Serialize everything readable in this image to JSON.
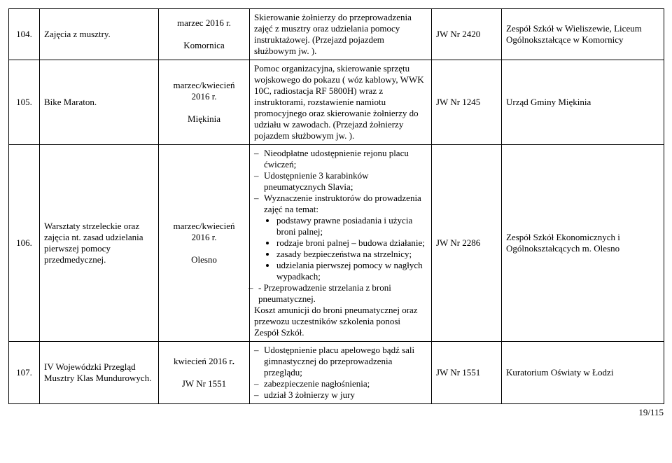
{
  "page_footer": "19/115",
  "rows": [
    {
      "num": "104.",
      "topic": "Zajęcia z musztry.",
      "when_html": "marzec 2016 r.<br><br>Komornica",
      "desc_html": "Skierowanie żołnierzy do przeprowadzenia zajęć z musztry oraz udzielania pomocy instruktażowej. (Przejazd pojazdem służbowym jw. ).",
      "jw": "JW Nr 2420",
      "contact_html": "Zespół Szkół w Wieliszewie, Liceum Ogólnokształcące w Komornicy"
    },
    {
      "num": "105.",
      "topic": "Bike Maraton.",
      "when_html": "marzec/kwiecień 2016 r.<br><br>Miękinia",
      "desc_html": "Pomoc organizacyjna, skierowanie sprzętu wojskowego do pokazu ( wóz kablowy, WWK 10C, radiostacja RF 5800H) wraz z instruktorami, rozstawienie namiotu promocyjnego oraz  skierowanie żołnierzy do udziału w zawodach. (Przejazd żołnierzy pojazdem służbowym jw. ).",
      "jw": "JW Nr 1245",
      "contact_html": "Urząd Gminy Miękinia"
    },
    {
      "num": "106.",
      "topic": "Warsztaty strzeleckie oraz zajęcia nt. zasad udzielania pierwszej pomocy przedmedycznej.",
      "when_html": "marzec/kwiecień 2016 r.<br><br>Olesno",
      "desc_html": "<ul class=\"dash\"><li>Nieodpłatne udostępnienie  rejonu placu ćwiczeń;</li><li>Udostępnienie 3 karabinków pneumatycznych Slavia;</li><li>Wyznaczenie instruktorów do prowadzenia zajęć na temat:<ul class=\"bullet\"><li>podstawy prawne posiadania i użycia broni palnej;</li><li>rodzaje broni palnej – budowa działanie;</li><li>zasady bezpieczeństwa na strzelnicy;</li><li>udzielania pierwszej pomocy w nagłych wypadkach;</li></ul></li><li style=\"list-style:none;margin-left:-8px\">-  Przeprowadzenie strzelania z broni pneumatycznej.</li></ul>Koszt amunicji do broni pneumatycznej oraz przewozu uczestników szkolenia ponosi Zespół Szkół.",
      "jw": "JW Nr 2286",
      "contact_html": "Zespół Szkół Ekonomicznych i Ogólnokształcących m. Olesno"
    },
    {
      "num": "107.",
      "topic": "IV Wojewódzki Przegląd Musztry Klas Mundurowych.",
      "when_html": "kwiecień 2016 r<b>.</b><br><br>JW Nr 1551",
      "desc_html": "<ul class=\"dash\"><li>Udostępnienie placu apelowego bądź sali gimnastycznej do przeprowadzenia przeglądu;</li><li>zabezpieczenie nagłośnienia;</li><li>udział 3 żołnierzy w jury</li></ul>",
      "jw": "JW Nr 1551",
      "contact_html": "Kuratorium Oświaty w Łodzi"
    }
  ],
  "colwidths": [
    "44px",
    "170px",
    "130px",
    "260px",
    "100px",
    "232px"
  ]
}
